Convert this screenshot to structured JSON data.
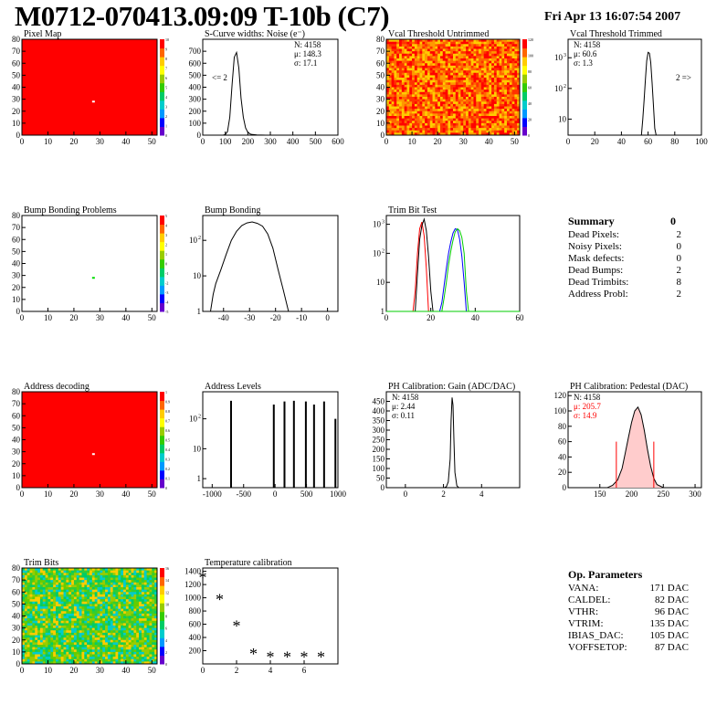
{
  "header": {
    "title": "M0712-070413.09:09 T-10b (C7)",
    "datetime": "Fri Apr 13 16:07:54 2007"
  },
  "summary": {
    "title": "Summary",
    "value": "0",
    "rows": [
      {
        "label": "Dead Pixels:",
        "value": "2"
      },
      {
        "label": "Noisy Pixels:",
        "value": "0"
      },
      {
        "label": "Mask defects:",
        "value": "0"
      },
      {
        "label": "Dead Bumps:",
        "value": "2"
      },
      {
        "label": "Dead Trimbits:",
        "value": "8"
      },
      {
        "label": "Address Probl:",
        "value": "2"
      }
    ]
  },
  "op_parameters": {
    "title": "Op. Parameters",
    "rows": [
      {
        "label": "VANA:",
        "value": "171 DAC"
      },
      {
        "label": "CALDEL:",
        "value": "82 DAC"
      },
      {
        "label": "VTHR:",
        "value": "96 DAC"
      },
      {
        "label": "VTRIM:",
        "value": "135 DAC"
      },
      {
        "label": "IBIAS_DAC:",
        "value": "105 DAC"
      },
      {
        "label": "VOFFSETOP:",
        "value": "87 DAC"
      }
    ]
  },
  "colors": {
    "frame": "#000000",
    "red_fill": "#ff0000",
    "blue_line": "#0000ff",
    "green_line": "#00cc00"
  },
  "chart_data": [
    {
      "id": "pixel_map",
      "type": "heatmap",
      "title": "Pixel Map",
      "xlim": [
        0,
        52
      ],
      "ylim": [
        0,
        80
      ],
      "xticks": [
        "0",
        "10",
        "20",
        "30",
        "40",
        "50"
      ],
      "yticks": [
        "0",
        "10",
        "20",
        "30",
        "40",
        "50",
        "60",
        "70",
        "80"
      ],
      "fill": "uniform red (10)",
      "special_pixels": [
        {
          "x": 27,
          "y": 28,
          "value": 0
        }
      ],
      "colorbar_ticks": [
        "0",
        "1",
        "2",
        "3",
        "4",
        "5",
        "6",
        "7",
        "8",
        "9",
        "10"
      ]
    },
    {
      "id": "scurve_noise",
      "type": "line",
      "title": "S-Curve widths: Noise (e⁻)",
      "xlim": [
        0,
        600
      ],
      "ylim": [
        0,
        800
      ],
      "xticks": [
        "0",
        "100",
        "200",
        "300",
        "400",
        "500",
        "600"
      ],
      "yticks": [
        "0",
        "100",
        "200",
        "300",
        "400",
        "500",
        "600",
        "700"
      ],
      "stats": [
        "N: 4158",
        "μ: 148.3",
        "σ: 17.1"
      ],
      "annotation": "<= 2",
      "points": [
        [
          90,
          0
        ],
        [
          100,
          5
        ],
        [
          110,
          30
        ],
        [
          120,
          150
        ],
        [
          130,
          420
        ],
        [
          140,
          650
        ],
        [
          150,
          690
        ],
        [
          160,
          560
        ],
        [
          170,
          310
        ],
        [
          180,
          150
        ],
        [
          190,
          60
        ],
        [
          200,
          25
        ],
        [
          210,
          10
        ],
        [
          220,
          5
        ],
        [
          240,
          2
        ],
        [
          260,
          1
        ],
        [
          280,
          0
        ]
      ]
    },
    {
      "id": "vcal_untrimmed",
      "type": "heatmap",
      "title": "Vcal Threshold Untrimmed",
      "xlim": [
        0,
        52
      ],
      "ylim": [
        0,
        80
      ],
      "xticks": [
        "0",
        "10",
        "20",
        "30",
        "40",
        "50"
      ],
      "yticks": [
        "0",
        "10",
        "20",
        "30",
        "40",
        "50",
        "60",
        "70",
        "80"
      ],
      "fill": "noisy orange/red, mostly 90-130",
      "colorbar_ticks": [
        "0",
        "20",
        "40",
        "60",
        "80",
        "100",
        "120"
      ]
    },
    {
      "id": "vcal_trimmed",
      "type": "line",
      "title": "Vcal Threshold Trimmed",
      "log_y": true,
      "xlim": [
        0,
        100
      ],
      "ylim": [
        3,
        4000
      ],
      "xticks": [
        "0",
        "20",
        "40",
        "60",
        "80",
        "100"
      ],
      "yticks": [
        "10",
        "10²",
        "10³"
      ],
      "stats": [
        "N: 4158",
        "μ: 60.6",
        "σ: 1.3"
      ],
      "annotation": "2 =>",
      "points": [
        [
          55,
          3
        ],
        [
          56,
          10
        ],
        [
          57,
          40
        ],
        [
          58,
          200
        ],
        [
          59,
          800
        ],
        [
          60,
          1500
        ],
        [
          61,
          1400
        ],
        [
          62,
          700
        ],
        [
          63,
          150
        ],
        [
          64,
          30
        ],
        [
          65,
          5
        ],
        [
          66,
          3
        ]
      ]
    },
    {
      "id": "bump_bonding_problems",
      "type": "heatmap",
      "title": "Bump Bonding Problems",
      "xlim": [
        0,
        52
      ],
      "ylim": [
        0,
        80
      ],
      "xticks": [
        "0",
        "10",
        "20",
        "30",
        "40",
        "50"
      ],
      "yticks": [
        "0",
        "10",
        "20",
        "30",
        "40",
        "50",
        "60",
        "70",
        "80"
      ],
      "fill": "empty",
      "special_pixels": [
        {
          "x": 27,
          "y": 28,
          "value": 1
        }
      ],
      "colorbar_ticks": [
        "-5",
        "-4",
        "-3",
        "-2",
        "-1",
        "0",
        "1",
        "2",
        "3",
        "4",
        "5"
      ]
    },
    {
      "id": "bump_bonding",
      "type": "line",
      "title": "Bump Bonding",
      "log_y": true,
      "xlim": [
        -48,
        4
      ],
      "ylim": [
        1,
        500
      ],
      "xticks": [
        "-40",
        "-30",
        "-20",
        "-10",
        "0"
      ],
      "yticks": [
        "1",
        "10",
        "10²"
      ],
      "points": [
        [
          -45,
          1
        ],
        [
          -44,
          3
        ],
        [
          -43,
          6
        ],
        [
          -41,
          15
        ],
        [
          -39,
          40
        ],
        [
          -37,
          100
        ],
        [
          -35,
          180
        ],
        [
          -33,
          260
        ],
        [
          -31,
          310
        ],
        [
          -29,
          330
        ],
        [
          -27,
          300
        ],
        [
          -25,
          250
        ],
        [
          -23,
          150
        ],
        [
          -21,
          60
        ],
        [
          -19,
          15
        ],
        [
          -17,
          4
        ],
        [
          -15,
          1
        ],
        [
          0,
          1
        ]
      ]
    },
    {
      "id": "trim_bit_test",
      "type": "line",
      "title": "Trim Bit Test",
      "log_y": true,
      "xlim": [
        0,
        60
      ],
      "ylim": [
        1,
        2000
      ],
      "xticks": [
        "0",
        "20",
        "40",
        "60"
      ],
      "yticks": [
        "1",
        "10",
        "10²",
        "10³"
      ],
      "series": [
        {
          "color": "red",
          "points": [
            [
              12,
              1
            ],
            [
              13,
              5
            ],
            [
              14,
              100
            ],
            [
              15,
              700
            ],
            [
              16,
              1200
            ],
            [
              17,
              400
            ],
            [
              18,
              30
            ],
            [
              19,
              1
            ]
          ]
        },
        {
          "color": "black",
          "points": [
            [
              13,
              1
            ],
            [
              14,
              20
            ],
            [
              15,
              300
            ],
            [
              16,
              900
            ],
            [
              17,
              1500
            ],
            [
              18,
              600
            ],
            [
              19,
              80
            ],
            [
              20,
              5
            ],
            [
              21,
              1
            ]
          ]
        },
        {
          "color": "blue",
          "points": [
            [
              24,
              1
            ],
            [
              25,
              2
            ],
            [
              26,
              8
            ],
            [
              27,
              30
            ],
            [
              28,
              100
            ],
            [
              29,
              250
            ],
            [
              30,
              500
            ],
            [
              31,
              700
            ],
            [
              32,
              650
            ],
            [
              33,
              300
            ],
            [
              34,
              80
            ],
            [
              35,
              10
            ],
            [
              36,
              1
            ]
          ]
        },
        {
          "color": "green",
          "points": [
            [
              25,
              1
            ],
            [
              26,
              3
            ],
            [
              27,
              10
            ],
            [
              28,
              40
            ],
            [
              29,
              120
            ],
            [
              30,
              280
            ],
            [
              31,
              550
            ],
            [
              32,
              700
            ],
            [
              33,
              600
            ],
            [
              34,
              350
            ],
            [
              35,
              100
            ],
            [
              36,
              5
            ],
            [
              37,
              1
            ]
          ]
        }
      ]
    },
    {
      "id": "address_decoding",
      "type": "heatmap",
      "title": "Address decoding",
      "xlim": [
        0,
        52
      ],
      "ylim": [
        0,
        80
      ],
      "xticks": [
        "0",
        "10",
        "20",
        "30",
        "40",
        "50"
      ],
      "yticks": [
        "0",
        "10",
        "20",
        "30",
        "40",
        "50",
        "60",
        "70",
        "80"
      ],
      "fill": "uniform red (1)",
      "special_pixels": [
        {
          "x": 27,
          "y": 28,
          "value": 0
        }
      ],
      "colorbar_ticks": [
        "0",
        "0.1",
        "0.2",
        "0.3",
        "0.4",
        "0.5",
        "0.6",
        "0.7",
        "0.8",
        "0.9",
        "1"
      ]
    },
    {
      "id": "address_levels",
      "type": "line",
      "title": "Address Levels",
      "log_y": true,
      "xlim": [
        -1150,
        1000
      ],
      "ylim": [
        0.5,
        800
      ],
      "xticks": [
        "-1000",
        "-500",
        "0",
        "500",
        "1000"
      ],
      "yticks": [
        "1",
        "10",
        "10²"
      ],
      "peaks": [
        {
          "x": -700,
          "y": 400
        },
        {
          "x": -20,
          "y": 300
        },
        {
          "x": 150,
          "y": 380
        },
        {
          "x": 300,
          "y": 400
        },
        {
          "x": 490,
          "y": 380
        },
        {
          "x": 620,
          "y": 300
        },
        {
          "x": 780,
          "y": 380
        },
        {
          "x": 960,
          "y": 100
        }
      ]
    },
    {
      "id": "ph_gain",
      "type": "line",
      "title": "PH Calibration: Gain (ADC/DAC)",
      "xlim": [
        -1,
        6
      ],
      "ylim": [
        0,
        500
      ],
      "xticks": [
        "0",
        "2",
        "4"
      ],
      "yticks": [
        "0",
        "50",
        "100",
        "150",
        "200",
        "250",
        "300",
        "350",
        "400",
        "450"
      ],
      "stats": [
        "N: 4158",
        "μ: 2.44",
        "σ: 0.11"
      ],
      "points": [
        [
          2.05,
          0
        ],
        [
          2.15,
          5
        ],
        [
          2.25,
          30
        ],
        [
          2.35,
          150
        ],
        [
          2.4,
          350
        ],
        [
          2.45,
          470
        ],
        [
          2.5,
          430
        ],
        [
          2.55,
          250
        ],
        [
          2.6,
          80
        ],
        [
          2.7,
          10
        ],
        [
          2.8,
          0
        ]
      ]
    },
    {
      "id": "ph_pedestal",
      "type": "line",
      "title": "PH Calibration: Pedestal (DAC)",
      "xlim": [
        100,
        310
      ],
      "ylim": [
        0,
        125
      ],
      "xticks": [
        "150",
        "200",
        "250",
        "300"
      ],
      "yticks": [
        "0",
        "20",
        "40",
        "60",
        "80",
        "100",
        "120"
      ],
      "stats": [
        "N: 4158",
        "μ: 205.7",
        "σ: 14.9"
      ],
      "points": [
        [
          162,
          0
        ],
        [
          170,
          3
        ],
        [
          178,
          10
        ],
        [
          185,
          25
        ],
        [
          190,
          45
        ],
        [
          195,
          65
        ],
        [
          200,
          85
        ],
        [
          205,
          100
        ],
        [
          210,
          105
        ],
        [
          215,
          95
        ],
        [
          220,
          75
        ],
        [
          225,
          50
        ],
        [
          230,
          28
        ],
        [
          235,
          12
        ],
        [
          240,
          4
        ],
        [
          250,
          0
        ]
      ],
      "markers": [
        176,
        235
      ]
    },
    {
      "id": "trim_bits",
      "type": "heatmap",
      "title": "Trim Bits",
      "xlim": [
        0,
        52
      ],
      "ylim": [
        0,
        80
      ],
      "xticks": [
        "0",
        "10",
        "20",
        "30",
        "40",
        "50"
      ],
      "yticks": [
        "0",
        "10",
        "20",
        "30",
        "40",
        "50",
        "60",
        "70",
        "80"
      ],
      "fill": "noisy green/yellow, mostly 8-12",
      "colorbar_ticks": [
        "0",
        "2",
        "4",
        "6",
        "8",
        "10",
        "12",
        "14",
        "16"
      ]
    },
    {
      "id": "temperature_calibration",
      "type": "scatter",
      "title": "Temperature calibration",
      "xlim": [
        0,
        8
      ],
      "ylim": [
        0,
        1450
      ],
      "xticks": [
        "0",
        "2",
        "4",
        "6"
      ],
      "yticks": [
        "200",
        "400",
        "600",
        "800",
        "1000",
        "1200",
        "1400"
      ],
      "points": [
        [
          0,
          1330
        ],
        [
          1,
          1000
        ],
        [
          2,
          600
        ],
        [
          3,
          180
        ],
        [
          4,
          130
        ],
        [
          5,
          130
        ],
        [
          6,
          130
        ],
        [
          7,
          130
        ]
      ]
    }
  ]
}
